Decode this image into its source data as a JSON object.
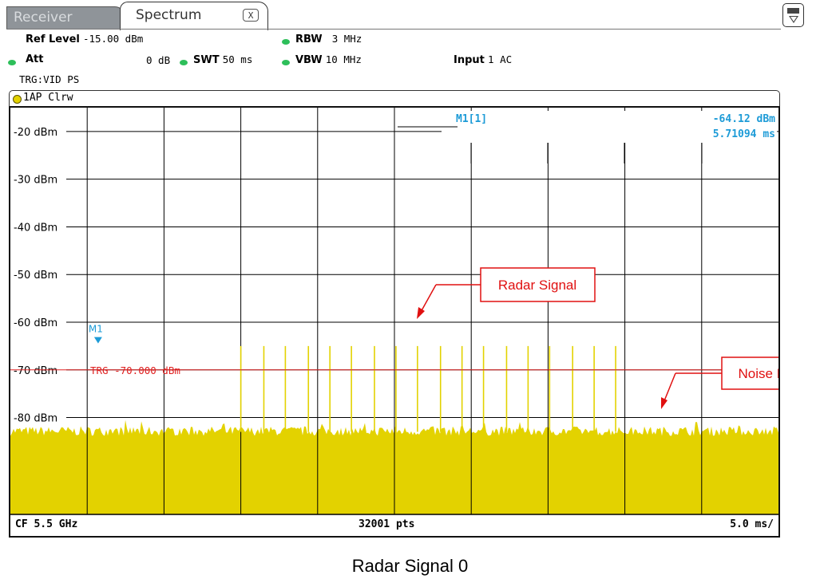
{
  "tabs": {
    "receiver": "Receiver",
    "spectrum": "Spectrum",
    "close": "X"
  },
  "settings": {
    "ref_level_label": "Ref Level",
    "ref_level_value": "-15.00 dBm",
    "att_label": "Att",
    "att_value": "0 dB",
    "swt_label": "SWT",
    "swt_value": "50 ms",
    "rbw_label": "RBW",
    "rbw_value": "3 MHz",
    "vbw_label": "VBW",
    "vbw_value": "10 MHz",
    "input_label": "Input",
    "input_value": "1 AC",
    "trigger": "TRG:VID PS"
  },
  "trace": {
    "label": "1AP Clrw",
    "color": "#e3d200"
  },
  "marker": {
    "id": "M1[1]",
    "short": "M1",
    "level": "-64.12 dBm",
    "time": "5.71094 ms",
    "time_ms": 5.71094,
    "level_dbm": -64.12,
    "color": "#1d9bd7"
  },
  "trigger_line": {
    "label": "TRG  -70.000 dBm",
    "level_dbm": -70.0,
    "color": "#e02020"
  },
  "footer": {
    "center_freq": "CF 5.5 GHz",
    "points": "32001 pts",
    "per_div": "5.0 ms/"
  },
  "annotations": {
    "radar_signal": "Radar Signal",
    "noise_floor": "Noise Floor"
  },
  "caption": "Radar Signal 0",
  "chart_data": {
    "type": "line",
    "ylabel": "",
    "y_ticks": [
      "-20 dBm",
      "-30 dBm",
      "-40 dBm",
      "-50 dBm",
      "-60 dBm",
      "-70 dBm",
      "-80 dBm"
    ],
    "ylim": [
      -105,
      -15
    ],
    "xlim_ms": [
      0,
      50
    ],
    "noise_floor_dbm": -83,
    "pulses": [
      {
        "t_ms": 15.0,
        "level_dbm": -65
      },
      {
        "t_ms": 16.5,
        "level_dbm": -65
      },
      {
        "t_ms": 17.9,
        "level_dbm": -65
      },
      {
        "t_ms": 19.4,
        "level_dbm": -65
      },
      {
        "t_ms": 20.8,
        "level_dbm": -65
      },
      {
        "t_ms": 22.2,
        "level_dbm": -65
      },
      {
        "t_ms": 23.7,
        "level_dbm": -65
      },
      {
        "t_ms": 25.1,
        "level_dbm": -65
      },
      {
        "t_ms": 26.5,
        "level_dbm": -65
      },
      {
        "t_ms": 28.0,
        "level_dbm": -65
      },
      {
        "t_ms": 29.4,
        "level_dbm": -65
      },
      {
        "t_ms": 30.8,
        "level_dbm": -65
      },
      {
        "t_ms": 32.3,
        "level_dbm": -65
      },
      {
        "t_ms": 33.7,
        "level_dbm": -65
      },
      {
        "t_ms": 35.1,
        "level_dbm": -65
      },
      {
        "t_ms": 36.6,
        "level_dbm": -65
      },
      {
        "t_ms": 38.0,
        "level_dbm": -65
      },
      {
        "t_ms": 39.4,
        "level_dbm": -65
      }
    ],
    "grid": true
  }
}
